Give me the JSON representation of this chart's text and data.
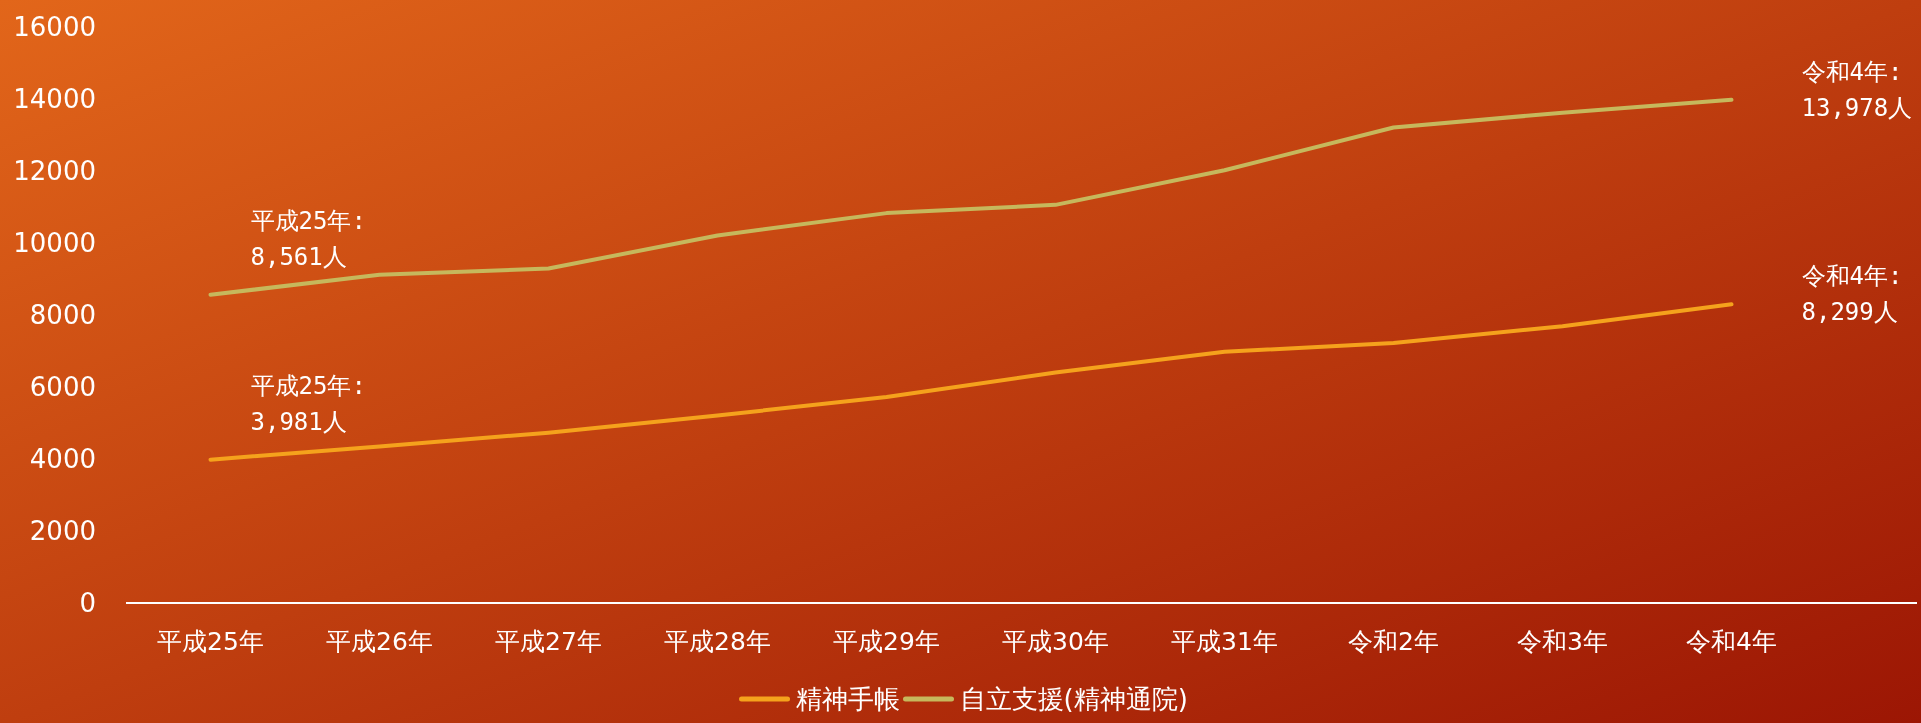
{
  "chart_data": {
    "type": "line",
    "categories": [
      "平成25年",
      "平成26年",
      "平成27年",
      "平成28年",
      "平成29年",
      "平成30年",
      "平成31年",
      "令和2年",
      "令和3年",
      "令和4年"
    ],
    "series": [
      {
        "name": "精神手帳",
        "color": "#f5a21c",
        "values": [
          3981,
          4350,
          4730,
          5210,
          5720,
          6400,
          6980,
          7220,
          7690,
          8299
        ]
      },
      {
        "name": "自立支援(精神通院)",
        "color": "#c6b85c",
        "values": [
          8561,
          9120,
          9290,
          10210,
          10830,
          11060,
          12020,
          13210,
          13620,
          13978
        ]
      }
    ],
    "ylim": [
      0,
      16000
    ],
    "yticks": [
      0,
      2000,
      4000,
      6000,
      8000,
      10000,
      12000,
      14000,
      16000
    ],
    "grid": false,
    "legend": "bottom",
    "marker": "none",
    "line_style": "solid",
    "annotations": [
      {
        "text": "平成25年:\n3,981人",
        "x": "平成25年",
        "y": 3981
      },
      {
        "text": "平成25年:\n8,561人",
        "x": "平成25年",
        "y": 8561
      },
      {
        "text": "令和4年:\n8,299人",
        "x": "令和4年",
        "y": 8299
      },
      {
        "text": "令和4年:\n13,978人",
        "x": "令和4年",
        "y": 13978
      }
    ]
  }
}
